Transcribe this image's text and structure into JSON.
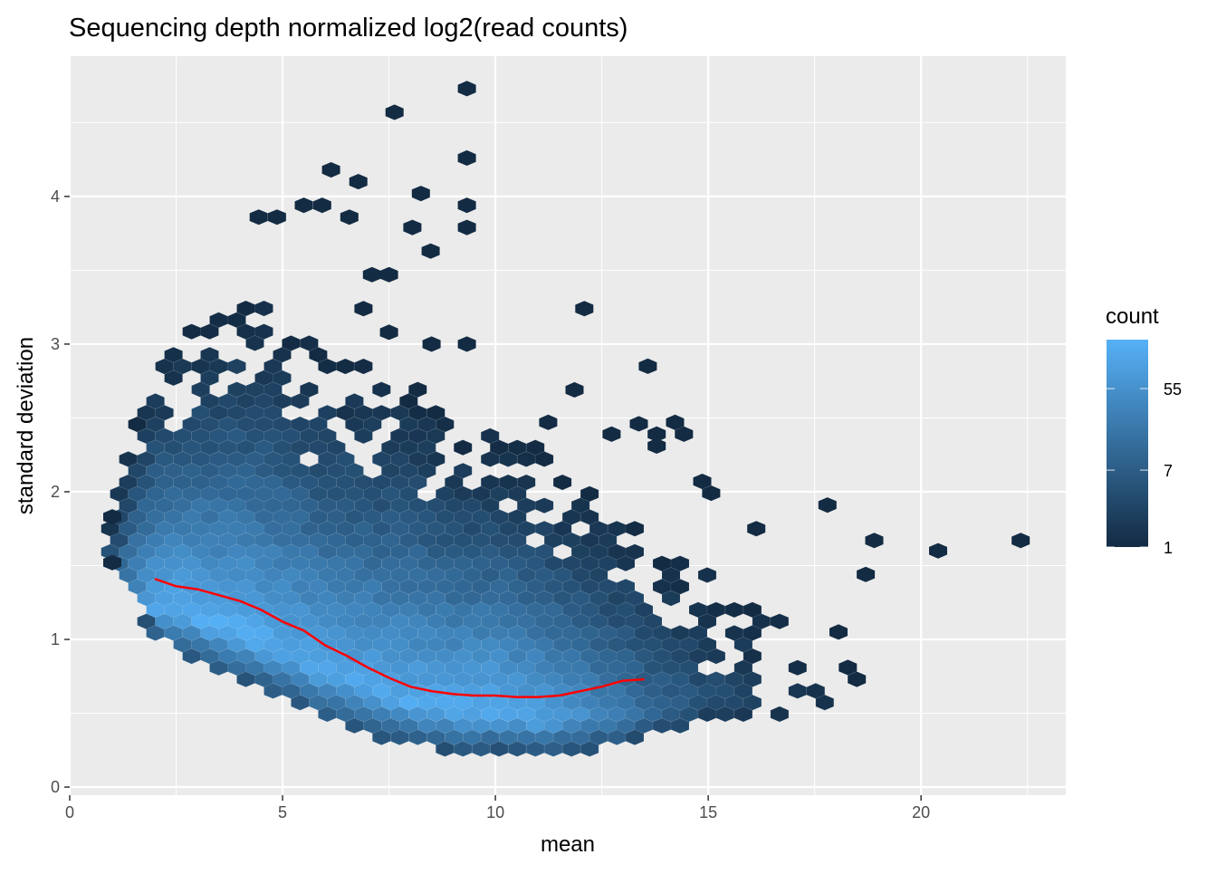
{
  "chart_data": {
    "type": "hexbin",
    "title": "Sequencing depth normalized log2(read counts)",
    "xlabel": "mean",
    "ylabel": "standard deviation",
    "xlim": [
      0,
      23.4
    ],
    "ylim": [
      -0.055,
      4.95
    ],
    "x_ticks": [
      0,
      5,
      10,
      15,
      20
    ],
    "y_ticks": [
      0,
      1,
      2,
      3,
      4
    ],
    "x_tick_labels": [
      "0",
      "5",
      "10",
      "15",
      "20"
    ],
    "y_tick_labels": [
      "0",
      "1",
      "2",
      "3",
      "4"
    ],
    "grid": true,
    "legend": {
      "title": "count",
      "position": "right",
      "scale": "log",
      "breaks": [
        1,
        7,
        55
      ],
      "break_labels": [
        "1",
        "7",
        "55"
      ],
      "max_count": 190,
      "low_color": "#132B43",
      "high_color": "#56B1F7"
    },
    "hex_bin_width": {
      "mean": 0.425,
      "sd": 0.0785
    },
    "body_extent": {
      "lower_sd": [
        [
          0.9,
          1.5
        ],
        [
          1.5,
          1.25
        ],
        [
          2,
          1.0
        ],
        [
          3,
          0.85
        ],
        [
          4,
          0.72
        ],
        [
          5,
          0.6
        ],
        [
          6,
          0.45
        ],
        [
          7,
          0.36
        ],
        [
          8,
          0.27
        ],
        [
          9,
          0.25
        ],
        [
          10,
          0.25
        ],
        [
          11,
          0.2
        ],
        [
          12,
          0.24
        ],
        [
          13,
          0.27
        ],
        [
          14,
          0.35
        ],
        [
          15,
          0.45
        ],
        [
          16,
          0.45
        ],
        [
          17,
          0.5
        ],
        [
          18,
          0.5
        ]
      ],
      "upper_sd": [
        [
          0.9,
          1.85
        ],
        [
          1.5,
          2.5
        ],
        [
          2,
          2.9
        ],
        [
          3,
          3.2
        ],
        [
          4,
          3.3
        ],
        [
          5,
          3.2
        ],
        [
          6,
          3.0
        ],
        [
          7,
          2.9
        ],
        [
          8,
          2.8
        ],
        [
          9,
          2.5
        ],
        [
          10,
          2.4
        ],
        [
          11,
          2.3
        ],
        [
          12,
          2.1
        ],
        [
          13,
          1.9
        ],
        [
          14,
          1.6
        ],
        [
          15,
          1.45
        ],
        [
          16,
          1.3
        ],
        [
          17,
          1.1
        ],
        [
          18,
          0.7
        ]
      ],
      "peak_log_count": [
        [
          0.9,
          1.5
        ],
        [
          1.5,
          3.5
        ],
        [
          2,
          5.0
        ],
        [
          4,
          5.1
        ],
        [
          6,
          4.8
        ],
        [
          8,
          4.9
        ],
        [
          10,
          5.1
        ],
        [
          11,
          4.7
        ],
        [
          12,
          4.0
        ],
        [
          13,
          3.2
        ],
        [
          14,
          2.3
        ],
        [
          15,
          1.6
        ],
        [
          16,
          1.0
        ],
        [
          17,
          0.5
        ],
        [
          18,
          0.1
        ]
      ]
    },
    "isolated_bins": [
      [
        9.33,
        4.73,
        1
      ],
      [
        7.63,
        4.57,
        1
      ],
      [
        9.33,
        4.26,
        1
      ],
      [
        6.14,
        4.18,
        1
      ],
      [
        6.78,
        4.1,
        1
      ],
      [
        8.25,
        4.02,
        1
      ],
      [
        9.33,
        3.94,
        1
      ],
      [
        5.5,
        3.94,
        1
      ],
      [
        5.93,
        3.94,
        1
      ],
      [
        4.44,
        3.86,
        1
      ],
      [
        4.87,
        3.86,
        1
      ],
      [
        6.57,
        3.86,
        1
      ],
      [
        9.33,
        3.79,
        1
      ],
      [
        8.05,
        3.79,
        1
      ],
      [
        8.48,
        3.63,
        1
      ],
      [
        12.09,
        3.24,
        1
      ],
      [
        13.58,
        2.85,
        1
      ],
      [
        11.86,
        2.69,
        1
      ],
      [
        17.8,
        1.91,
        1
      ],
      [
        18.9,
        1.67,
        1
      ],
      [
        20.4,
        1.6,
        1
      ],
      [
        22.34,
        1.67,
        1
      ],
      [
        18.7,
        1.44,
        1
      ],
      [
        18.06,
        1.05,
        1
      ],
      [
        18.28,
        0.81,
        1
      ],
      [
        18.49,
        0.73,
        1
      ],
      [
        16.13,
        1.75,
        1
      ],
      [
        15.07,
        1.99,
        1
      ],
      [
        14.86,
        2.07,
        1
      ],
      [
        14.22,
        2.47,
        1
      ],
      [
        14.43,
        2.39,
        1
      ],
      [
        13.79,
        2.39,
        1
      ],
      [
        13.37,
        2.46,
        1
      ],
      [
        12.73,
        2.39,
        1
      ],
      [
        11.24,
        2.47,
        1
      ],
      [
        13.79,
        2.31,
        1
      ],
      [
        1.0,
        1.83,
        1
      ],
      [
        1.0,
        1.52,
        1
      ],
      [
        7.5,
        3.47,
        1
      ],
      [
        7.1,
        3.47,
        1
      ],
      [
        6.9,
        3.24,
        1
      ],
      [
        7.5,
        3.08,
        1
      ],
      [
        8.5,
        3.0,
        1
      ],
      [
        9.33,
        3.0,
        1
      ]
    ],
    "trend_line": {
      "color": "#FF0000",
      "x": [
        2.0,
        2.5,
        3.0,
        3.5,
        4.0,
        4.5,
        5.0,
        5.5,
        6.0,
        6.5,
        7.0,
        7.5,
        8.0,
        8.5,
        9.0,
        9.5,
        10.0,
        10.5,
        11.0,
        11.5,
        12.0,
        12.5,
        13.0,
        13.5
      ],
      "y": [
        1.41,
        1.36,
        1.34,
        1.3,
        1.26,
        1.2,
        1.12,
        1.06,
        0.96,
        0.89,
        0.81,
        0.74,
        0.68,
        0.65,
        0.63,
        0.62,
        0.62,
        0.61,
        0.61,
        0.62,
        0.65,
        0.68,
        0.72,
        0.73
      ]
    }
  }
}
